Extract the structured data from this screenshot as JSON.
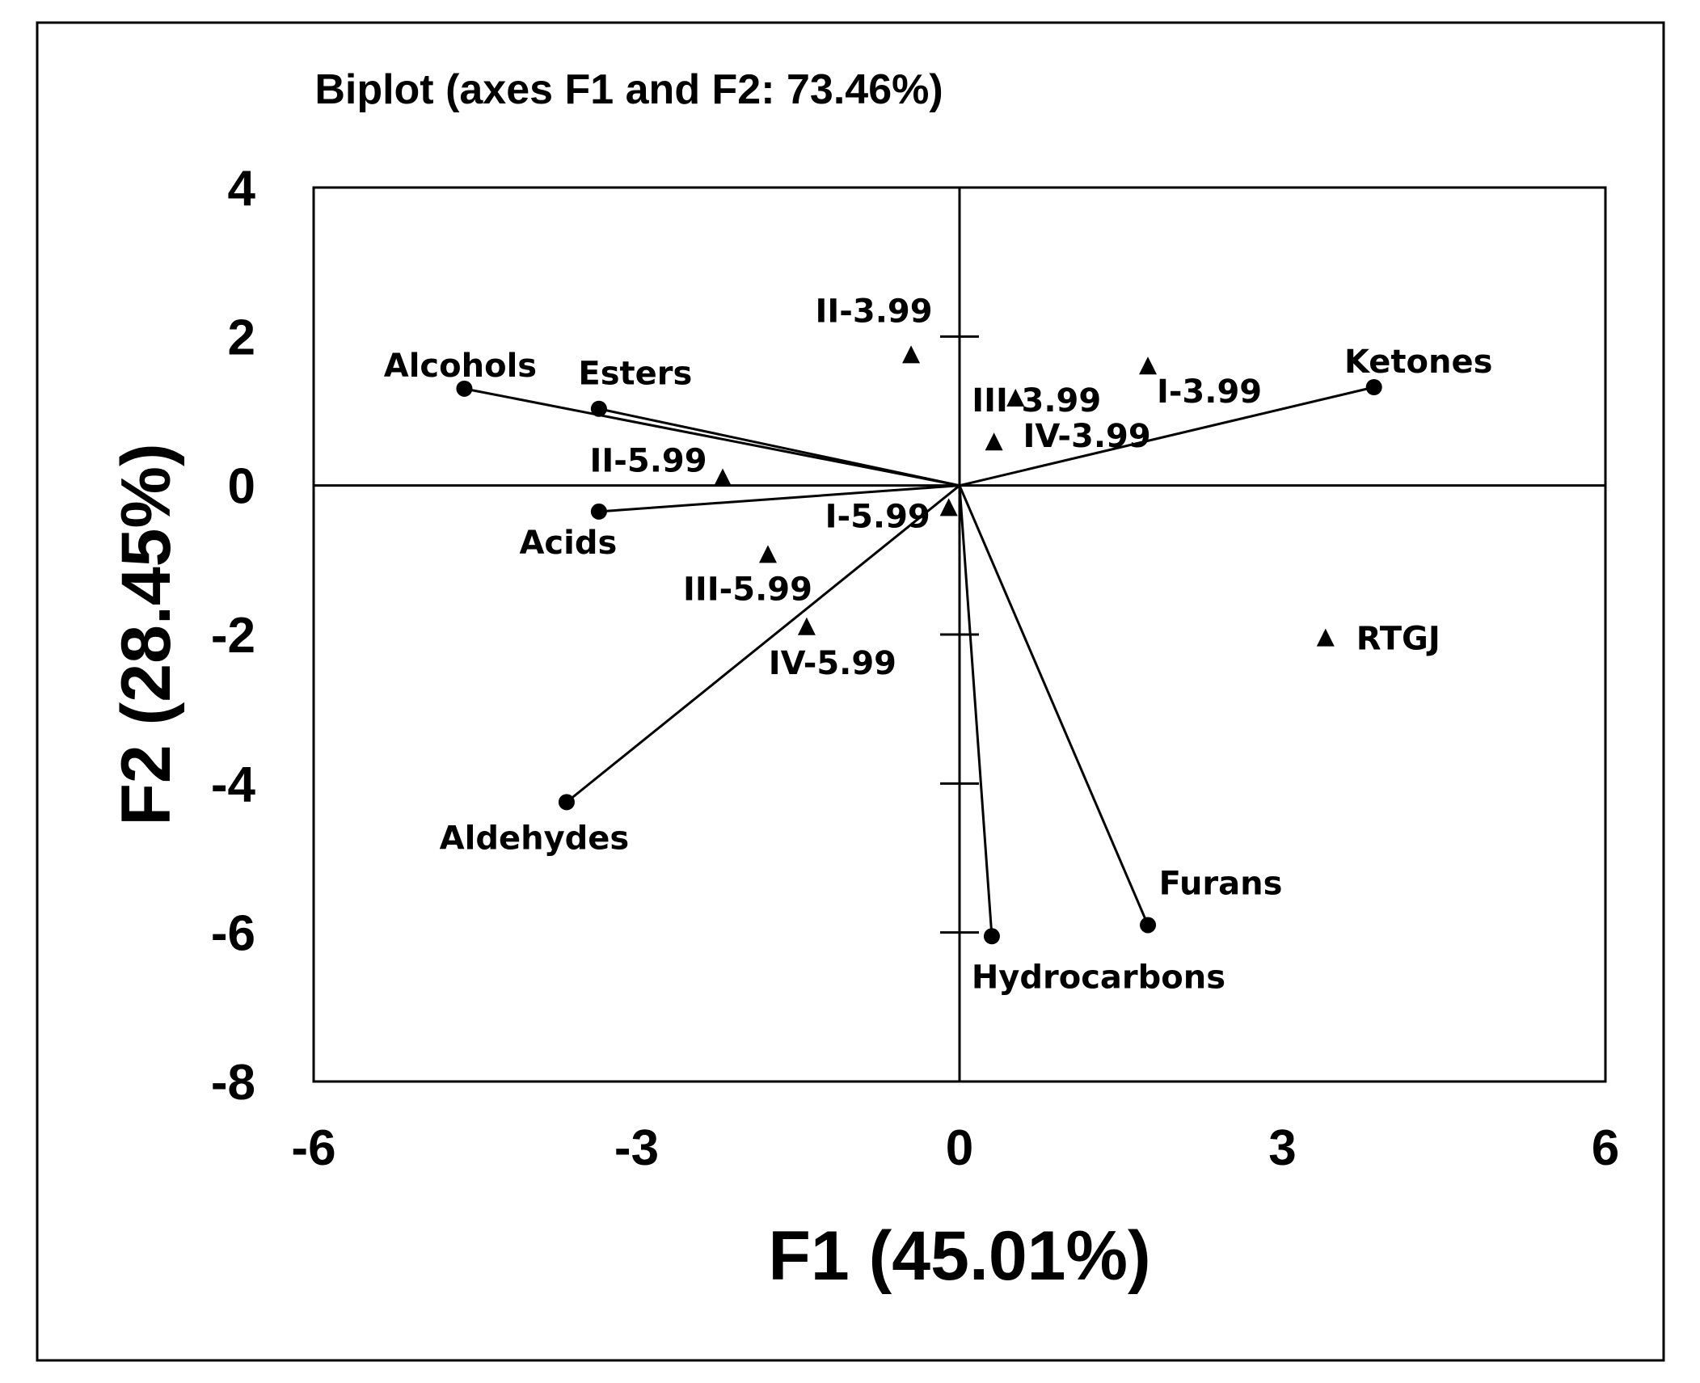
{
  "chart_data": {
    "type": "scatter",
    "title": "Biplot (axes F1 and F2: 73.46%)",
    "xlabel": "F1 (45.01%)",
    "ylabel": "F2 (28.45%)",
    "xlim": [
      -6,
      6
    ],
    "ylim": [
      -8,
      4
    ],
    "x_ticks": [
      -6,
      -3,
      0,
      3,
      6
    ],
    "y_ticks": [
      4,
      2,
      0,
      -2,
      -4,
      -6,
      -8
    ],
    "x_tick_labels": [
      "-6",
      "-3",
      "0",
      "3",
      "6"
    ],
    "y_tick_labels": [
      "4",
      "2",
      "0",
      "-2",
      "-4",
      "-6",
      "-8"
    ],
    "grid": false,
    "series": [
      {
        "marker": "circle",
        "vectors_from_origin": true,
        "points": [
          {
            "label": "Alcohols",
            "x": -4.6,
            "y": 1.3
          },
          {
            "label": "Esters",
            "x": -3.35,
            "y": 1.03
          },
          {
            "label": "Acids",
            "x": -3.35,
            "y": -0.35
          },
          {
            "label": "Aldehydes",
            "x": -3.65,
            "y": -4.25
          },
          {
            "label": "Ketones",
            "x": 3.85,
            "y": 1.32
          },
          {
            "label": "Furans",
            "x": 1.75,
            "y": -5.9
          },
          {
            "label": "Hydrocarbons",
            "x": 0.3,
            "y": -6.05
          }
        ]
      },
      {
        "marker": "triangle",
        "vectors_from_origin": false,
        "points": [
          {
            "label": "II-3.99",
            "x": -0.45,
            "y": 1.75
          },
          {
            "label": "III-3.99",
            "x": 0.52,
            "y": 1.17
          },
          {
            "label": "I-3.99",
            "x": 1.75,
            "y": 1.6
          },
          {
            "label": "IV-3.99",
            "x": 0.32,
            "y": 0.58
          },
          {
            "label": "II-5.99",
            "x": -2.2,
            "y": 0.1
          },
          {
            "label": "I-5.99",
            "x": -0.1,
            "y": -0.3
          },
          {
            "label": "III-5.99",
            "x": -1.78,
            "y": -0.93
          },
          {
            "label": "IV-5.99",
            "x": -1.42,
            "y": -1.9
          },
          {
            "label": "RTGJ",
            "x": 3.4,
            "y": -2.05
          }
        ]
      }
    ]
  }
}
